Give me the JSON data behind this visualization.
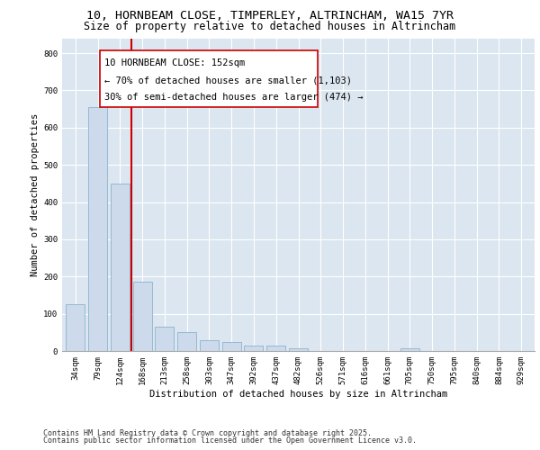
{
  "title_line1": "10, HORNBEAM CLOSE, TIMPERLEY, ALTRINCHAM, WA15 7YR",
  "title_line2": "Size of property relative to detached houses in Altrincham",
  "xlabel": "Distribution of detached houses by size in Altrincham",
  "ylabel": "Number of detached properties",
  "categories": [
    "34sqm",
    "79sqm",
    "124sqm",
    "168sqm",
    "213sqm",
    "258sqm",
    "303sqm",
    "347sqm",
    "392sqm",
    "437sqm",
    "482sqm",
    "526sqm",
    "571sqm",
    "616sqm",
    "661sqm",
    "705sqm",
    "750sqm",
    "795sqm",
    "840sqm",
    "884sqm",
    "929sqm"
  ],
  "values": [
    125,
    655,
    450,
    185,
    65,
    50,
    30,
    25,
    15,
    15,
    8,
    0,
    0,
    0,
    0,
    8,
    0,
    0,
    0,
    0,
    0
  ],
  "bar_color": "#cddaeb",
  "bar_edge_color": "#7aaac8",
  "vline_x": 2.5,
  "vline_color": "#cc0000",
  "annotation_line1": "10 HORNBEAM CLOSE: 152sqm",
  "annotation_line2": "← 70% of detached houses are smaller (1,103)",
  "annotation_line3": "30% of semi-detached houses are larger (474) →",
  "ylim": [
    0,
    840
  ],
  "yticks": [
    0,
    100,
    200,
    300,
    400,
    500,
    600,
    700,
    800
  ],
  "plot_bg_color": "#dce6f0",
  "grid_color": "#ffffff",
  "fig_bg_color": "#ffffff",
  "footer_line1": "Contains HM Land Registry data © Crown copyright and database right 2025.",
  "footer_line2": "Contains public sector information licensed under the Open Government Licence v3.0.",
  "title_fontsize": 9.5,
  "subtitle_fontsize": 8.5,
  "axis_label_fontsize": 7.5,
  "tick_fontsize": 6.5,
  "annotation_fontsize": 7.5,
  "footer_fontsize": 6.0
}
